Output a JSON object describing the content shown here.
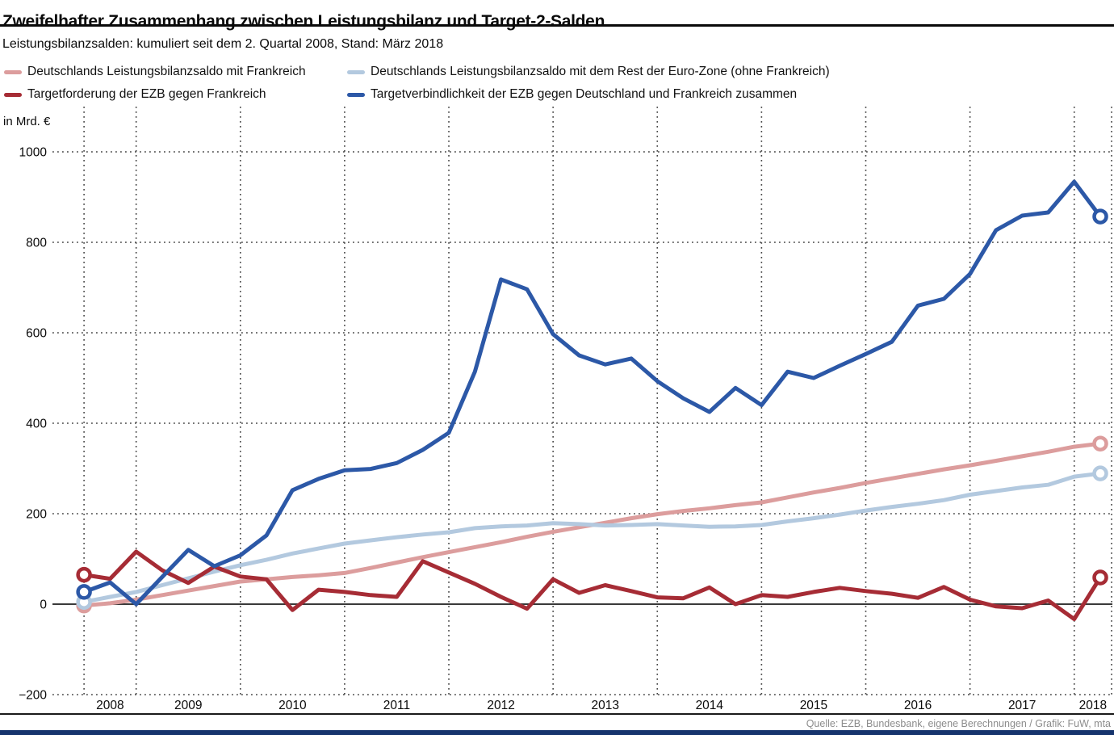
{
  "header": {
    "title": "Zweifelhafter Zusammenhang zwischen Leistungsbilanz und Target-2-Salden",
    "subtitle": "Leistungsbilanzsalden: kumuliert seit dem 2. Quartal 2008, Stand: März 2018"
  },
  "legend": [
    {
      "key": "frankreich-lb",
      "label": "Deutschlands Leistungsbilanzsaldo mit Frankreich",
      "color": "#DC9D9D"
    },
    {
      "key": "rest-eurozone-lb",
      "label": "Deutschlands Leistungsbilanzsaldo mit dem Rest der Euro-Zone (ohne Frankreich)",
      "color": "#B3C9DF"
    },
    {
      "key": "target-frankreich",
      "label": "Targetforderung der EZB gegen Frankreich",
      "color": "#A62C35"
    },
    {
      "key": "target-de-fr",
      "label": "Targetverbindlichkeit der EZB gegen Deutschland und Frankreich zusammen",
      "color": "#2C58A7"
    }
  ],
  "axis": {
    "unit_label": "in Mrd. €",
    "y_tick_values": [
      -200,
      0,
      200,
      400,
      600,
      800,
      1000
    ],
    "y_tick_labels": [
      "−200",
      "0",
      "200",
      "400",
      "600",
      "800",
      "1000"
    ],
    "x_year_labels": [
      "2008",
      "2009",
      "2010",
      "2011",
      "2012",
      "2013",
      "2014",
      "2015",
      "2016",
      "2017",
      "2018"
    ]
  },
  "footer": {
    "source": "Quelle: EZB, Bundesbank, eigene Berechnungen / Grafik: FuW, mta"
  },
  "chart_data": {
    "type": "line",
    "title": "Zweifelhafter Zusammenhang zwischen Leistungsbilanz und Target-2-Salden",
    "ylabel": "in Mrd. €",
    "ylim": [
      -200,
      1000
    ],
    "grid": "dotted",
    "zero_line": true,
    "legend_position": "top",
    "x": [
      "2008-Q2",
      "2008-Q3",
      "2008-Q4",
      "2009-Q1",
      "2009-Q2",
      "2009-Q3",
      "2009-Q4",
      "2010-Q1",
      "2010-Q2",
      "2010-Q3",
      "2010-Q4",
      "2011-Q1",
      "2011-Q2",
      "2011-Q3",
      "2011-Q4",
      "2012-Q1",
      "2012-Q2",
      "2012-Q3",
      "2012-Q4",
      "2013-Q1",
      "2013-Q2",
      "2013-Q3",
      "2013-Q4",
      "2014-Q1",
      "2014-Q2",
      "2014-Q3",
      "2014-Q4",
      "2015-Q1",
      "2015-Q2",
      "2015-Q3",
      "2015-Q4",
      "2016-Q1",
      "2016-Q2",
      "2016-Q3",
      "2016-Q4",
      "2017-Q1",
      "2017-Q2",
      "2017-Q3",
      "2017-Q4",
      "2018-Q1"
    ],
    "series": [
      {
        "name": "Deutschlands Leistungsbilanzsaldo mit Frankreich",
        "color": "#DC9D9D",
        "marker": "open-circle-ends",
        "values": [
          -3,
          2,
          10,
          20,
          30,
          40,
          50,
          55,
          60,
          64,
          69,
          80,
          92,
          104,
          115,
          126,
          137,
          149,
          160,
          170,
          180,
          190,
          199,
          206,
          212,
          219,
          225,
          236,
          247,
          257,
          268,
          278,
          288,
          298,
          307,
          317,
          327,
          337,
          348,
          355
        ]
      },
      {
        "name": "Deutschlands Leistungsbilanzsaldo mit dem Rest der Euro-Zone (ohne Frankreich)",
        "color": "#B3C9DF",
        "marker": "open-circle-ends",
        "values": [
          5,
          16,
          27,
          42,
          57,
          72,
          86,
          98,
          112,
          123,
          134,
          141,
          148,
          154,
          159,
          168,
          172,
          174,
          179,
          177,
          174,
          175,
          177,
          174,
          171,
          172,
          175,
          183,
          190,
          198,
          207,
          215,
          222,
          230,
          242,
          250,
          258,
          264,
          282,
          289
        ]
      },
      {
        "name": "Targetforderung der EZB gegen Frankreich",
        "color": "#A62C35",
        "marker": "open-circle-ends",
        "values": [
          65,
          56,
          116,
          75,
          47,
          83,
          61,
          55,
          -13,
          32,
          27,
          20,
          16,
          95,
          70,
          45,
          16,
          -10,
          55,
          25,
          42,
          29,
          15,
          13,
          37,
          0,
          20,
          16,
          27,
          36,
          29,
          23,
          14,
          38,
          10,
          -5,
          -9,
          8,
          -33,
          59
        ]
      },
      {
        "name": "Targetverbindlichkeit der EZB gegen Deutschland und Frankreich zusammen",
        "color": "#2C58A7",
        "marker": "open-circle-ends",
        "values": [
          27,
          48,
          0,
          60,
          120,
          84,
          108,
          152,
          252,
          277,
          296,
          299,
          312,
          341,
          379,
          514,
          718,
          696,
          597,
          550,
          530,
          543,
          493,
          455,
          425,
          478,
          440,
          514,
          500,
          527,
          553,
          580,
          660,
          675,
          730,
          827,
          859,
          866,
          934,
          857
        ]
      }
    ]
  }
}
